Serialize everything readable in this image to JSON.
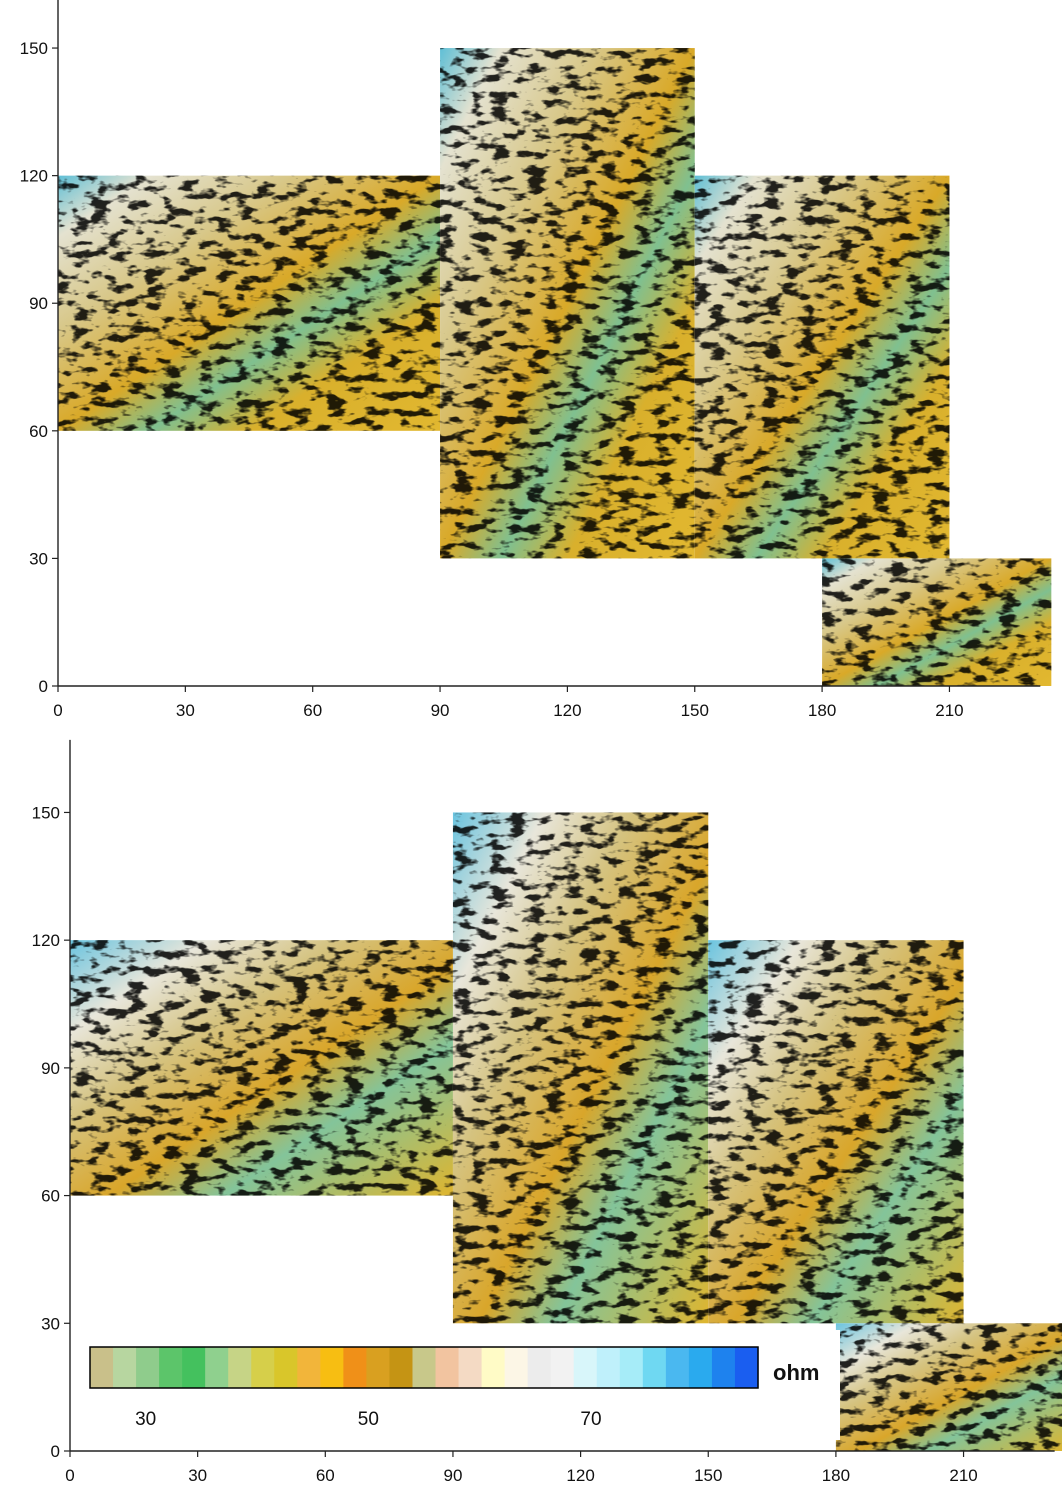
{
  "chart_data": [
    {
      "type": "heatmap",
      "title": "",
      "xlabel": "",
      "ylabel": "",
      "xlim": [
        0,
        230
      ],
      "ylim": [
        0,
        160
      ],
      "x_ticks": [
        "0",
        "30",
        "60",
        "90",
        "120",
        "150",
        "180",
        "210"
      ],
      "y_ticks": [
        "0",
        "30",
        "60",
        "90",
        "120",
        "150"
      ],
      "tiles": [
        {
          "x": [
            0,
            90
          ],
          "y": [
            60,
            120
          ]
        },
        {
          "x": [
            90,
            150
          ],
          "y": [
            30,
            150
          ]
        },
        {
          "x": [
            150,
            210
          ],
          "y": [
            30,
            120
          ]
        },
        {
          "x": [
            180,
            234
          ],
          "y": [
            0,
            30
          ]
        }
      ]
    },
    {
      "type": "heatmap",
      "title": "",
      "xlabel": "",
      "ylabel": "",
      "xlim": [
        0,
        230
      ],
      "ylim": [
        0,
        160
      ],
      "x_ticks": [
        "0",
        "30",
        "60",
        "90",
        "120",
        "150",
        "180",
        "210"
      ],
      "y_ticks": [
        "0",
        "30",
        "60",
        "90",
        "120",
        "150"
      ],
      "tiles": [
        {
          "x": [
            0,
            90
          ],
          "y": [
            60,
            120
          ]
        },
        {
          "x": [
            90,
            150
          ],
          "y": [
            30,
            150
          ]
        },
        {
          "x": [
            150,
            210
          ],
          "y": [
            30,
            120
          ]
        },
        {
          "x": [
            180,
            234
          ],
          "y": [
            0,
            30
          ]
        }
      ]
    }
  ],
  "colorbar": {
    "unit": "ohm",
    "tick_labels": [
      "30",
      "50",
      "70"
    ],
    "tick_values": [
      30,
      50,
      70
    ],
    "range": [
      25,
      85
    ],
    "colors": [
      "#c9c08a",
      "#b7d6a0",
      "#8fcc8c",
      "#5cc56a",
      "#44c15e",
      "#8fd08e",
      "#c6d486",
      "#d6cf4a",
      "#d9c62a",
      "#f2b53a",
      "#f7be12",
      "#f09018",
      "#d9a020",
      "#c59414",
      "#c8c88a",
      "#f2c4a0",
      "#f4dac4",
      "#fffbc6",
      "#fcf6e6",
      "#ececec",
      "#f2f2f2",
      "#d8f6fa",
      "#bff0fb",
      "#a6ecf8",
      "#6fd8f2",
      "#4ab8f0",
      "#2aaaee",
      "#1e82ee",
      "#1a5ef0"
    ]
  }
}
